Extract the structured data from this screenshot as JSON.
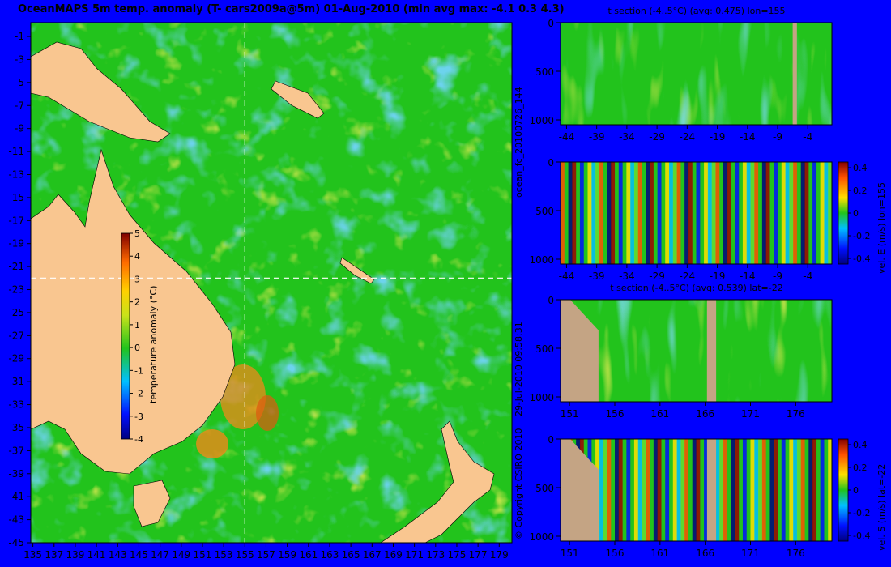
{
  "main_title": "OceanMAPS 5m temp. anomaly (T- cars2009a@5m) 01-Aug-2010 (min avg max: -4.1 0.3 4.3)",
  "side_labels": {
    "run_id": "ocean_fc_20100726_144",
    "timestamp": "29-Jul-2010 09:58:31",
    "copyright": "© Copyright CSIRO 2010"
  },
  "colors": {
    "background": "#0000ff",
    "land": "#f9c690",
    "section_land": "#c4a484",
    "ocean_base": "#22c31c"
  },
  "chart_data": [
    {
      "type": "heatmap",
      "name": "map",
      "title": "OceanMAPS 5m temp. anomaly (T- cars2009a@5m) 01-Aug-2010 (min avg max: -4.1 0.3 4.3)",
      "x_ticks": [
        "135",
        "137",
        "139",
        "141",
        "143",
        "145",
        "147",
        "149",
        "151",
        "153",
        "155",
        "157",
        "159",
        "161",
        "163",
        "165",
        "167",
        "169",
        "171",
        "173",
        "175",
        "177",
        "179"
      ],
      "y_ticks": [
        "-1",
        "-3",
        "-5",
        "-7",
        "-9",
        "-11",
        "-13",
        "-15",
        "-17",
        "-19",
        "-21",
        "-23",
        "-25",
        "-27",
        "-29",
        "-31",
        "-33",
        "-35",
        "-37",
        "-39",
        "-41",
        "-43",
        "-45"
      ],
      "xlim": [
        134.8,
        180.2
      ],
      "ylim": [
        -45,
        0.2
      ],
      "section_lon": 155,
      "section_lat": -22,
      "colorbar": {
        "label": "temperature anomaly (°C)",
        "ticks": [
          "5",
          "4",
          "3",
          "2",
          "1",
          "0",
          "-1",
          "-2",
          "-3",
          "-4"
        ],
        "range": [
          -4,
          5
        ]
      }
    },
    {
      "type": "heatmap",
      "name": "t-section-lon",
      "title": "t section (-4..5°C) (avg: 0.475) lon=155",
      "x_ticks": [
        "-44",
        "-39",
        "-34",
        "-29",
        "-24",
        "-19",
        "-14",
        "-9",
        "-4"
      ],
      "y_ticks": [
        "0",
        "500",
        "1000"
      ],
      "xlim": [
        -45,
        0
      ],
      "ylim": [
        1050,
        0
      ],
      "land_x": [
        -6.5,
        -5.8
      ]
    },
    {
      "type": "heatmap",
      "name": "v-section-lon",
      "title": "",
      "x_ticks": [
        "-44",
        "-39",
        "-34",
        "-29",
        "-24",
        "-19",
        "-14",
        "-9",
        "-4"
      ],
      "y_ticks": [
        "0",
        "500",
        "1000"
      ],
      "xlim": [
        -45,
        0
      ],
      "ylim": [
        1050,
        0
      ],
      "colorbar": {
        "label": "vel. E (m/s) lon=155",
        "ticks": [
          "0.4",
          "0.2",
          "0",
          "-0.2",
          "-0.4"
        ],
        "range": [
          -0.45,
          0.45
        ]
      }
    },
    {
      "type": "heatmap",
      "name": "t-section-lat",
      "title": "t section (-4..5°C) (avg: 0.539) lat=-22",
      "x_ticks": [
        "151",
        "156",
        "161",
        "166",
        "171",
        "176"
      ],
      "y_ticks": [
        "0",
        "500",
        "1000"
      ],
      "xlim": [
        150,
        180
      ],
      "ylim": [
        1050,
        0
      ],
      "land_x": [
        166.2,
        167.2
      ]
    },
    {
      "type": "heatmap",
      "name": "v-section-lat",
      "title": "",
      "x_ticks": [
        "151",
        "156",
        "161",
        "166",
        "171",
        "176"
      ],
      "y_ticks": [
        "0",
        "500",
        "1000"
      ],
      "xlim": [
        150,
        180
      ],
      "ylim": [
        1050,
        0
      ],
      "colorbar": {
        "label": "vel. S (m/s) lat=-22",
        "ticks": [
          "0.4",
          "0.2",
          "0",
          "-0.2",
          "-0.4"
        ],
        "range": [
          -0.45,
          0.45
        ]
      }
    }
  ]
}
